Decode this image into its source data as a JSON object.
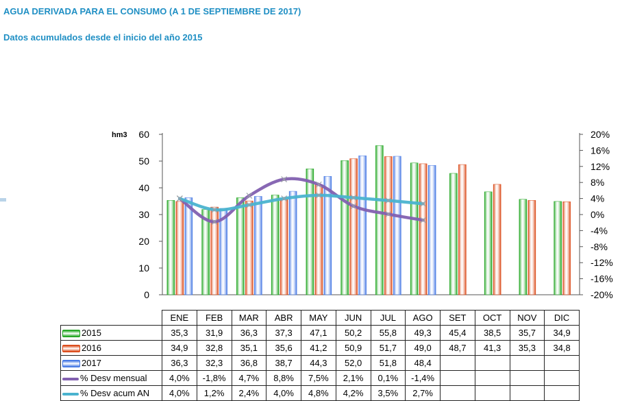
{
  "header": {
    "title": "AGUA DERIVADA PARA EL CONSUMO (A 1 DE SEPTIEMBRE DE 2017)",
    "subtitle": "Datos acumulados desde el inicio del año 2015"
  },
  "chart_data": {
    "type": "bar",
    "ylabel": "hm3",
    "ylim": [
      0,
      60
    ],
    "yticks": [
      "0",
      "10",
      "20",
      "30",
      "40",
      "50",
      "60"
    ],
    "y2lim": [
      -20,
      20
    ],
    "y2ticks": [
      "-20%",
      "-16%",
      "-12%",
      "-8%",
      "-4%",
      "0%",
      "4%",
      "8%",
      "12%",
      "16%",
      "20%"
    ],
    "categories": [
      "ENE",
      "FEB",
      "MAR",
      "ABR",
      "MAY",
      "JUN",
      "JUL",
      "AGO",
      "SET",
      "OCT",
      "NOV",
      "DIC"
    ],
    "series": [
      {
        "name": "2015",
        "type": "bar",
        "color": "#1aa31a",
        "values": [
          35.3,
          31.9,
          36.3,
          37.3,
          47.1,
          50.2,
          55.8,
          49.3,
          45.4,
          38.5,
          35.7,
          34.9
        ],
        "labels": [
          "35,3",
          "31,9",
          "36,3",
          "37,3",
          "47,1",
          "50,2",
          "55,8",
          "49,3",
          "45,4",
          "38,5",
          "35,7",
          "34,9"
        ]
      },
      {
        "name": "2016",
        "type": "bar",
        "color": "#d9420f",
        "values": [
          34.9,
          32.8,
          35.1,
          35.6,
          41.2,
          50.9,
          51.7,
          49.0,
          48.7,
          41.3,
          35.3,
          34.8
        ],
        "labels": [
          "34,9",
          "32,8",
          "35,1",
          "35,6",
          "41,2",
          "50,9",
          "51,7",
          "49,0",
          "48,7",
          "41,3",
          "35,3",
          "34,8"
        ]
      },
      {
        "name": "2017",
        "type": "bar",
        "color": "#3f73e3",
        "values": [
          36.3,
          32.3,
          36.8,
          38.7,
          44.3,
          52.0,
          51.8,
          48.4,
          null,
          null,
          null,
          null
        ],
        "labels": [
          "36,3",
          "32,3",
          "36,8",
          "38,7",
          "44,3",
          "52,0",
          "51,8",
          "48,4",
          "",
          "",
          "",
          ""
        ]
      },
      {
        "name": "% Desv mensual",
        "type": "line",
        "axis": "right",
        "color": "#8260b0",
        "values": [
          4.0,
          -1.8,
          4.7,
          8.8,
          7.5,
          2.1,
          0.1,
          -1.4,
          null,
          null,
          null,
          null
        ],
        "labels": [
          "4,0%",
          "-1,8%",
          "4,7%",
          "8,8%",
          "7,5%",
          "2,1%",
          "0,1%",
          "-1,4%",
          "",
          "",
          "",
          ""
        ]
      },
      {
        "name": "% Desv acum AN",
        "type": "line",
        "axis": "right",
        "color": "#4ab3cf",
        "values": [
          4.0,
          1.2,
          2.4,
          4.0,
          4.8,
          4.2,
          3.5,
          2.7,
          null,
          null,
          null,
          null
        ],
        "labels": [
          "4,0%",
          "1,2%",
          "2,4%",
          "4,0%",
          "4,8%",
          "4,2%",
          "3,5%",
          "2,7%",
          "",
          "",
          "",
          ""
        ]
      }
    ],
    "legend": "data-table"
  }
}
